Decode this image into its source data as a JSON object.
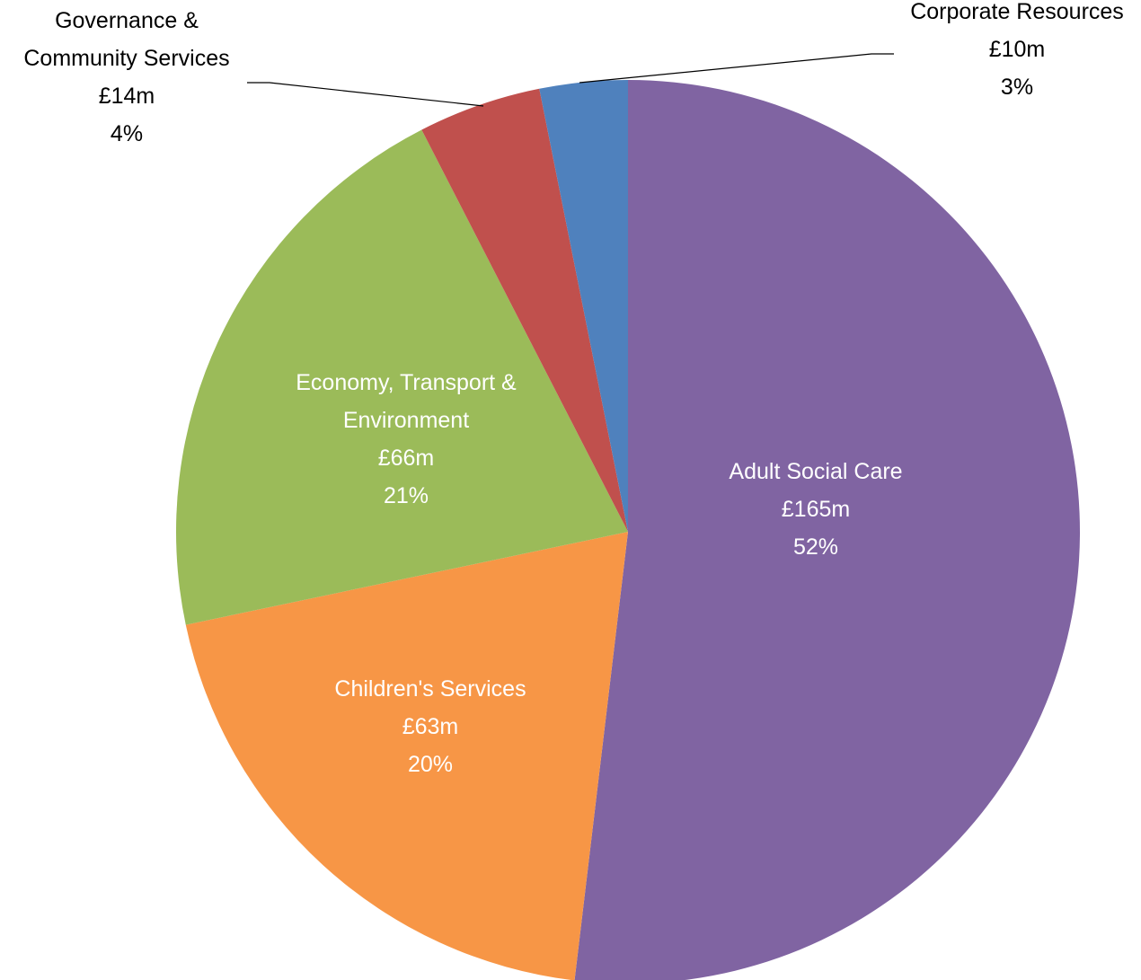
{
  "chart_data": {
    "type": "pie",
    "title": "",
    "start_angle_deg": 0,
    "direction": "clockwise",
    "slices": [
      {
        "label_lines": [
          "Adult Social Care"
        ],
        "value_label": "£165m",
        "percent_label": "52%",
        "value": 165,
        "color": "#8064A2",
        "label_position": "inside"
      },
      {
        "label_lines": [
          "Children's Services"
        ],
        "value_label": "£63m",
        "percent_label": "20%",
        "value": 63,
        "color": "#F79646",
        "label_position": "inside"
      },
      {
        "label_lines": [
          "Economy, Transport &",
          "Environment"
        ],
        "value_label": "£66m",
        "percent_label": "21%",
        "value": 66,
        "color": "#9BBB59",
        "label_position": "inside"
      },
      {
        "label_lines": [
          "Governance &",
          "Community Services"
        ],
        "value_label": "£14m",
        "percent_label": "4%",
        "value": 14,
        "color": "#C0504D",
        "label_position": "outside-left"
      },
      {
        "label_lines": [
          "Corporate Resources"
        ],
        "value_label": "£10m",
        "percent_label": "3%",
        "value": 10,
        "color": "#4F81BD",
        "label_position": "outside-right"
      }
    ]
  }
}
